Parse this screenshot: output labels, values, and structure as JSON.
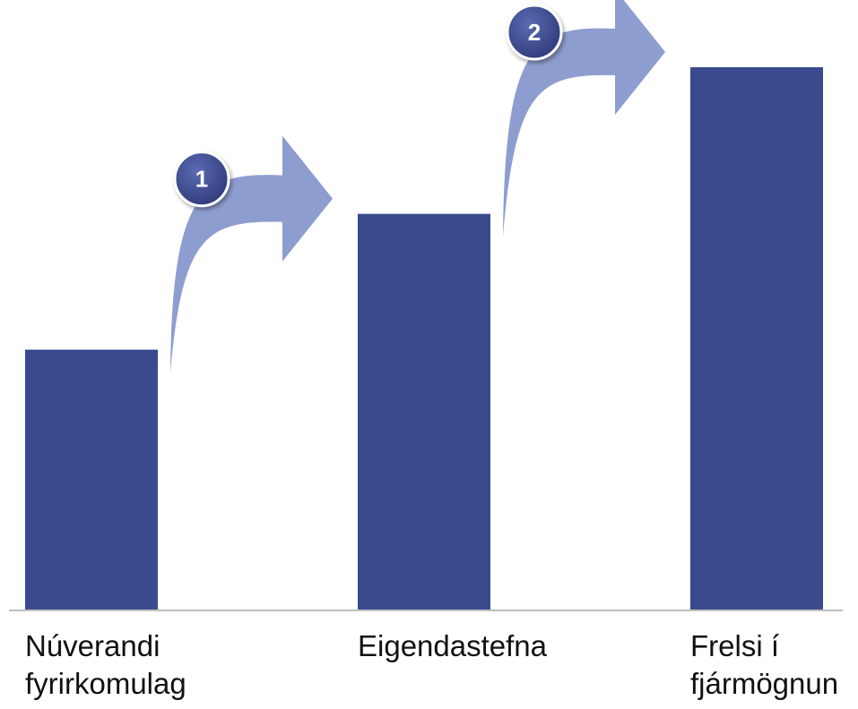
{
  "chart_data": {
    "type": "bar",
    "title": "",
    "xlabel": "",
    "ylabel": "",
    "ylim": [
      0,
      100
    ],
    "grid": false,
    "categories": [
      [
        "Núverandi",
        "fyrirkomulag"
      ],
      [
        "Eigendastefna"
      ],
      [
        "Frelsi í",
        "fjármögnun"
      ]
    ],
    "values": [
      48,
      73,
      100
    ],
    "bar_color": "#3A4A8C",
    "steps": [
      {
        "label": "1",
        "from": 0,
        "to": 1
      },
      {
        "label": "2",
        "from": 1,
        "to": 2
      }
    ],
    "arrow_color": "#8E9DCF",
    "badge_color": "#3A4A8C"
  }
}
